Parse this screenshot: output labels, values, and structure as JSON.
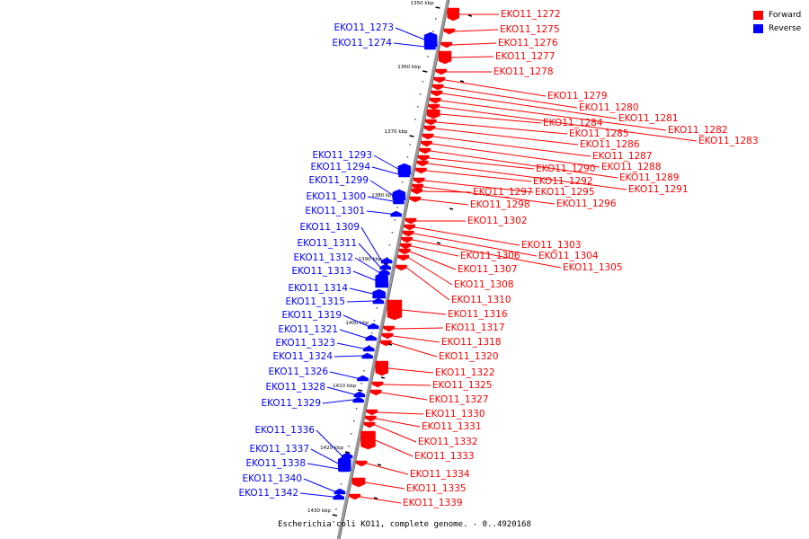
{
  "colors": {
    "forward": "#ff0000",
    "reverse": "#0000ff",
    "backbone": "#999999",
    "text": "#000000"
  },
  "legend": {
    "forward": "Forward",
    "reverse": "Reverse"
  },
  "caption": "Escherichia coli KO11, complete genome. - 0..4920168",
  "ticks": [
    "1350 kbp",
    "1360 kbp",
    "1370 kbp",
    "1380 kbp",
    "1390 kbp",
    "1400 kbp",
    "1410 kbp",
    "1420 kbp",
    "1430 kbp"
  ],
  "forward_labels": [
    "EKO11_1272",
    "EKO11_1275",
    "EKO11_1276",
    "EKO11_1277",
    "EKO11_1278",
    "EKO11_1279",
    "EKO11_1280",
    "EKO11_1281",
    "EKO11_1282",
    "EKO11_1283",
    "EKO11_1284",
    "EKO11_1285",
    "EKO11_1286",
    "EKO11_1287",
    "EKO11_1288",
    "EKO11_1289",
    "EKO11_1290",
    "EKO11_1291",
    "EKO11_1292",
    "EKO11_1295",
    "EKO11_1296",
    "EKO11_1297",
    "EKO11_1298",
    "EKO11_1302",
    "EKO11_1303",
    "EKO11_1304",
    "EKO11_1305",
    "EKO11_1306",
    "EKO11_1307",
    "EKO11_1308",
    "EKO11_1310",
    "EKO11_1316",
    "EKO11_1317",
    "EKO11_1318",
    "EKO11_1320",
    "EKO11_1322",
    "EKO11_1325",
    "EKO11_1327",
    "EKO11_1330",
    "EKO11_1331",
    "EKO11_1332",
    "EKO11_1333",
    "EKO11_1334",
    "EKO11_1335",
    "EKO11_1339"
  ],
  "reverse_labels": [
    "EKO11_1273",
    "EKO11_1274",
    "EKO11_1293",
    "EKO11_1294",
    "EKO11_1299",
    "EKO11_1300",
    "EKO11_1301",
    "EKO11_1309",
    "EKO11_1311",
    "EKO11_1312",
    "EKO11_1313",
    "EKO11_1314",
    "EKO11_1315",
    "EKO11_1319",
    "EKO11_1321",
    "EKO11_1323",
    "EKO11_1324",
    "EKO11_1326",
    "EKO11_1328",
    "EKO11_1329",
    "EKO11_1336",
    "EKO11_1337",
    "EKO11_1338",
    "EKO11_1340",
    "EKO11_1342"
  ]
}
